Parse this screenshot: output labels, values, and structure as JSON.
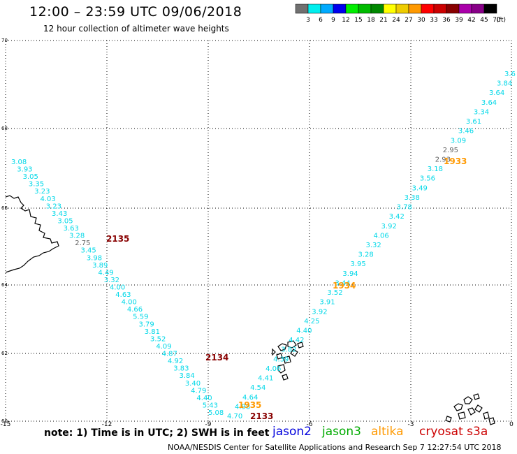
{
  "header": {
    "title": "12:00 – 23:59 UTC 09/06/2018",
    "subtitle": "12 hour collection of altimeter wave heights"
  },
  "color_scale": {
    "labels": [
      "3",
      "6",
      "9",
      "12",
      "15",
      "18",
      "21",
      "24",
      "27",
      "30",
      "33",
      "36",
      "39",
      "42",
      "45",
      "70"
    ],
    "unit": "(ft)",
    "colors": [
      "#707070",
      "#00eeee",
      "#00aaff",
      "#0000ee",
      "#00ee00",
      "#00bb00",
      "#008800",
      "#ffff00",
      "#eecc00",
      "#ff9900",
      "#ff0000",
      "#cc0000",
      "#880000",
      "#aa00aa",
      "#880088",
      "#000000"
    ]
  },
  "axes": {
    "x_ticks": [
      "-15",
      "-12",
      "-9",
      "-6",
      "-3",
      "0"
    ],
    "y_ticks": [
      "60",
      "62",
      "64",
      "66",
      "68",
      "70"
    ]
  },
  "tracks": {
    "west_values": [
      "3.08",
      "3.93",
      "3.05",
      "3.35",
      "3.23",
      "4.03",
      "3.23",
      "3.43",
      "3.05",
      "3.63",
      "3.28",
      "2.75",
      "3.45",
      "3.98",
      "3.89",
      "4.49",
      "3.32",
      "4.00",
      "4.63",
      "4.00",
      "4.66",
      "5.59",
      "3.79",
      "3.81",
      "3.52",
      "4.09",
      "4.87",
      "4.92",
      "3.83",
      "3.84",
      "3.40",
      "4.79",
      "4.40",
      "5.43",
      "5.08"
    ],
    "west_colors": [
      "cyan",
      "cyan",
      "cyan",
      "cyan",
      "cyan",
      "cyan",
      "cyan",
      "cyan",
      "cyan",
      "cyan",
      "cyan",
      "gray",
      "cyan",
      "cyan",
      "cyan",
      "cyan",
      "cyan",
      "cyan",
      "cyan",
      "cyan",
      "cyan",
      "cyan",
      "cyan",
      "cyan",
      "cyan",
      "cyan",
      "cyan",
      "cyan",
      "cyan",
      "cyan",
      "cyan",
      "cyan",
      "cyan",
      "cyan",
      "cyan"
    ],
    "east_values": [
      "3.6",
      "3.84",
      "3.64",
      "3.64",
      "3.34",
      "3.61",
      "3.46",
      "3.09",
      "2.95",
      "2.93",
      "3.18",
      "3.56",
      "3.49",
      "3.38",
      "3.78",
      "3.42",
      "3.92",
      "4.06",
      "3.32",
      "3.28",
      "3.95",
      "3.94",
      "3.44",
      "3.52",
      "3.91",
      "3.92",
      "4.25",
      "4.40",
      "4.42",
      "3.82",
      "4.39",
      "4.06",
      "4.41",
      "4.54",
      "4.64",
      "4.98",
      "4.70"
    ],
    "east_colors": [
      "cyan",
      "cyan",
      "cyan",
      "cyan",
      "cyan",
      "cyan",
      "cyan",
      "cyan",
      "gray",
      "gray",
      "cyan",
      "cyan",
      "cyan",
      "cyan",
      "cyan",
      "cyan",
      "cyan",
      "cyan",
      "cyan",
      "cyan",
      "cyan",
      "cyan",
      "cyan",
      "cyan",
      "cyan",
      "cyan",
      "cyan",
      "cyan",
      "cyan",
      "cyan",
      "cyan",
      "cyan",
      "cyan",
      "cyan",
      "cyan",
      "cyan",
      "cyan"
    ]
  },
  "time_labels": [
    {
      "text": "2135",
      "sat": "cryosat"
    },
    {
      "text": "1934",
      "sat": "altika"
    },
    {
      "text": "1933",
      "sat": "altika"
    },
    {
      "text": "2134",
      "sat": "cryosat"
    },
    {
      "text": "1935",
      "sat": "altika"
    },
    {
      "text": "2133",
      "sat": "cryosat"
    }
  ],
  "footer": {
    "note": "note: 1) Time is in UTC; 2) SWH is in feet",
    "satellites": [
      {
        "name": "jason2",
        "color": "#0000dd"
      },
      {
        "name": "jason3",
        "color": "#00aa00"
      },
      {
        "name": "altika",
        "color": "#ff9900"
      },
      {
        "name": "cryosat s3a",
        "color": "#cc0000"
      }
    ],
    "credit": "NOAA/NESDIS Center for Satellite Applications and Research    Sep  7 12:27:54 UTC 2018"
  }
}
